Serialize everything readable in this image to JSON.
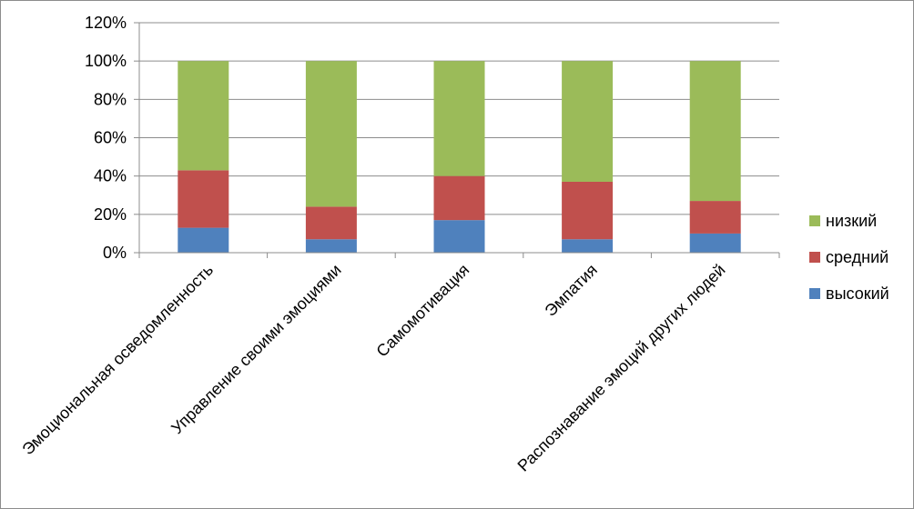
{
  "chart_data": {
    "type": "bar",
    "stacked": true,
    "categories": [
      "Эмоциональная осведомленность",
      "Управление своими эмоциями",
      "Самомотивация",
      "Эмпатия",
      "Распознавание эмоций других людей"
    ],
    "series": [
      {
        "name": "высокий",
        "color": "#4f81bd",
        "values": [
          13,
          7,
          17,
          7,
          10
        ]
      },
      {
        "name": "средний",
        "color": "#c0504d",
        "values": [
          30,
          17,
          23,
          30,
          17
        ]
      },
      {
        "name": "низкий",
        "color": "#9bbb59",
        "values": [
          57,
          76,
          60,
          63,
          73
        ]
      }
    ],
    "ylim": [
      0,
      120
    ],
    "yticks": [
      "0%",
      "20%",
      "40%",
      "60%",
      "80%",
      "100%",
      "120%"
    ],
    "grid": true,
    "legend": {
      "position": "right",
      "order": [
        "низкий",
        "средний",
        "высокий"
      ]
    }
  }
}
